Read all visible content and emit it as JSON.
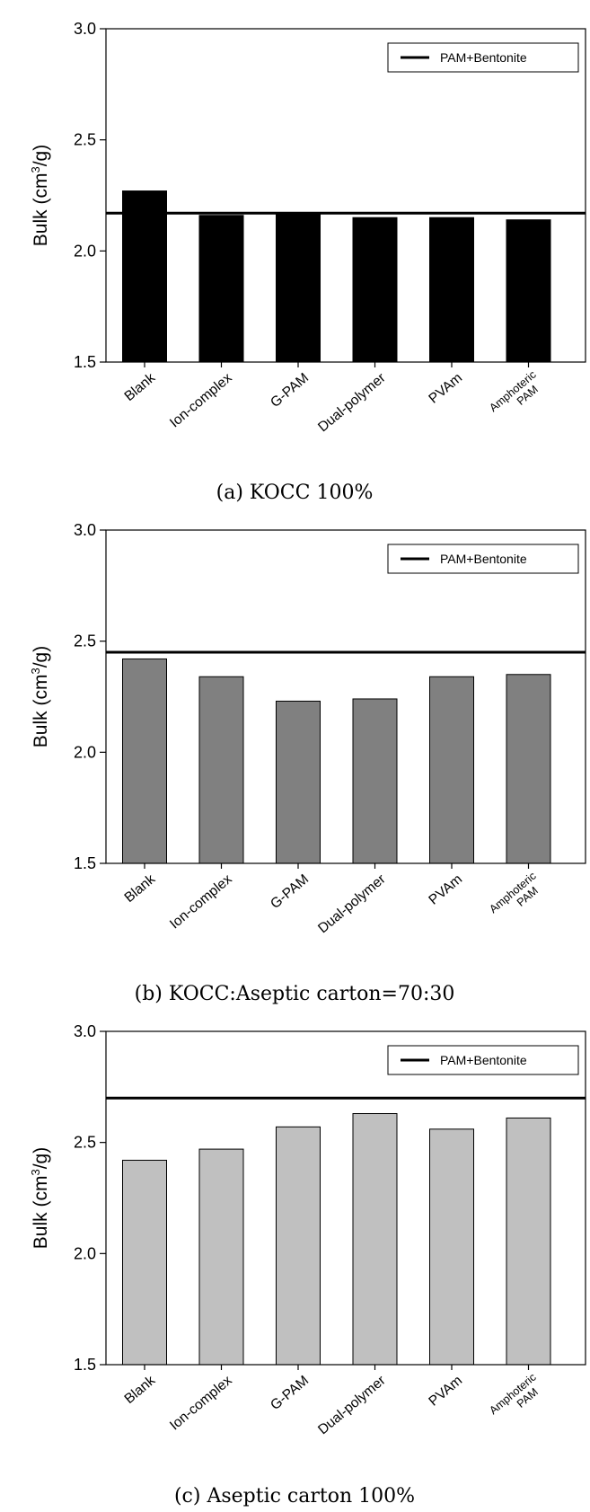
{
  "chart_data": [
    {
      "type": "bar",
      "caption": "(a) KOCC 100%",
      "ylabel_main": "Bulk (cm",
      "ylabel_sup": "3",
      "ylabel_end": "/g)",
      "categories": [
        {
          "line1": "Blank",
          "line2": ""
        },
        {
          "line1": "Ion-complex",
          "line2": ""
        },
        {
          "line1": "G-PAM",
          "line2": ""
        },
        {
          "line1": "Dual-polymer",
          "line2": ""
        },
        {
          "line1": "PVAm",
          "line2": ""
        },
        {
          "line1": "Amphoteric",
          "line2": "PAM"
        }
      ],
      "values": [
        2.27,
        2.16,
        2.17,
        2.15,
        2.15,
        2.14
      ],
      "reference_line": {
        "name": "PAM+Bentonite",
        "value": 2.17
      },
      "ylim": [
        1.5,
        3.0
      ],
      "yticks": [
        "1.5",
        "2.0",
        "2.5",
        "3.0"
      ],
      "bar_color": "#000000",
      "legend_position": "top-right",
      "grid": false
    },
    {
      "type": "bar",
      "caption": "(b) KOCC:Aseptic carton=70:30",
      "ylabel_main": "Bulk (cm",
      "ylabel_sup": "3",
      "ylabel_end": "/g)",
      "categories": [
        {
          "line1": "Blank",
          "line2": ""
        },
        {
          "line1": "Ion-complex",
          "line2": ""
        },
        {
          "line1": "G-PAM",
          "line2": ""
        },
        {
          "line1": "Dual-polymer",
          "line2": ""
        },
        {
          "line1": "PVAm",
          "line2": ""
        },
        {
          "line1": "Amphoteric",
          "line2": "PAM"
        }
      ],
      "values": [
        2.42,
        2.34,
        2.23,
        2.24,
        2.34,
        2.35
      ],
      "reference_line": {
        "name": "PAM+Bentonite",
        "value": 2.45
      },
      "ylim": [
        1.5,
        3.0
      ],
      "yticks": [
        "1.5",
        "2.0",
        "2.5",
        "3.0"
      ],
      "bar_color": "#808080",
      "legend_position": "top-right",
      "grid": false
    },
    {
      "type": "bar",
      "caption": "(c) Aseptic carton 100%",
      "ylabel_main": "Bulk (cm",
      "ylabel_sup": "3",
      "ylabel_end": "/g)",
      "categories": [
        {
          "line1": "Blank",
          "line2": ""
        },
        {
          "line1": "Ion-complex",
          "line2": ""
        },
        {
          "line1": "G-PAM",
          "line2": ""
        },
        {
          "line1": "Dual-polymer",
          "line2": ""
        },
        {
          "line1": "PVAm",
          "line2": ""
        },
        {
          "line1": "Amphoteric",
          "line2": "PAM"
        }
      ],
      "values": [
        2.42,
        2.47,
        2.57,
        2.63,
        2.56,
        2.61
      ],
      "reference_line": {
        "name": "PAM+Bentonite",
        "value": 2.7
      },
      "ylim": [
        1.5,
        3.0
      ],
      "yticks": [
        "1.5",
        "2.0",
        "2.5",
        "3.0"
      ],
      "bar_color": "#c0c0c0",
      "legend_position": "top-right",
      "grid": false
    }
  ]
}
